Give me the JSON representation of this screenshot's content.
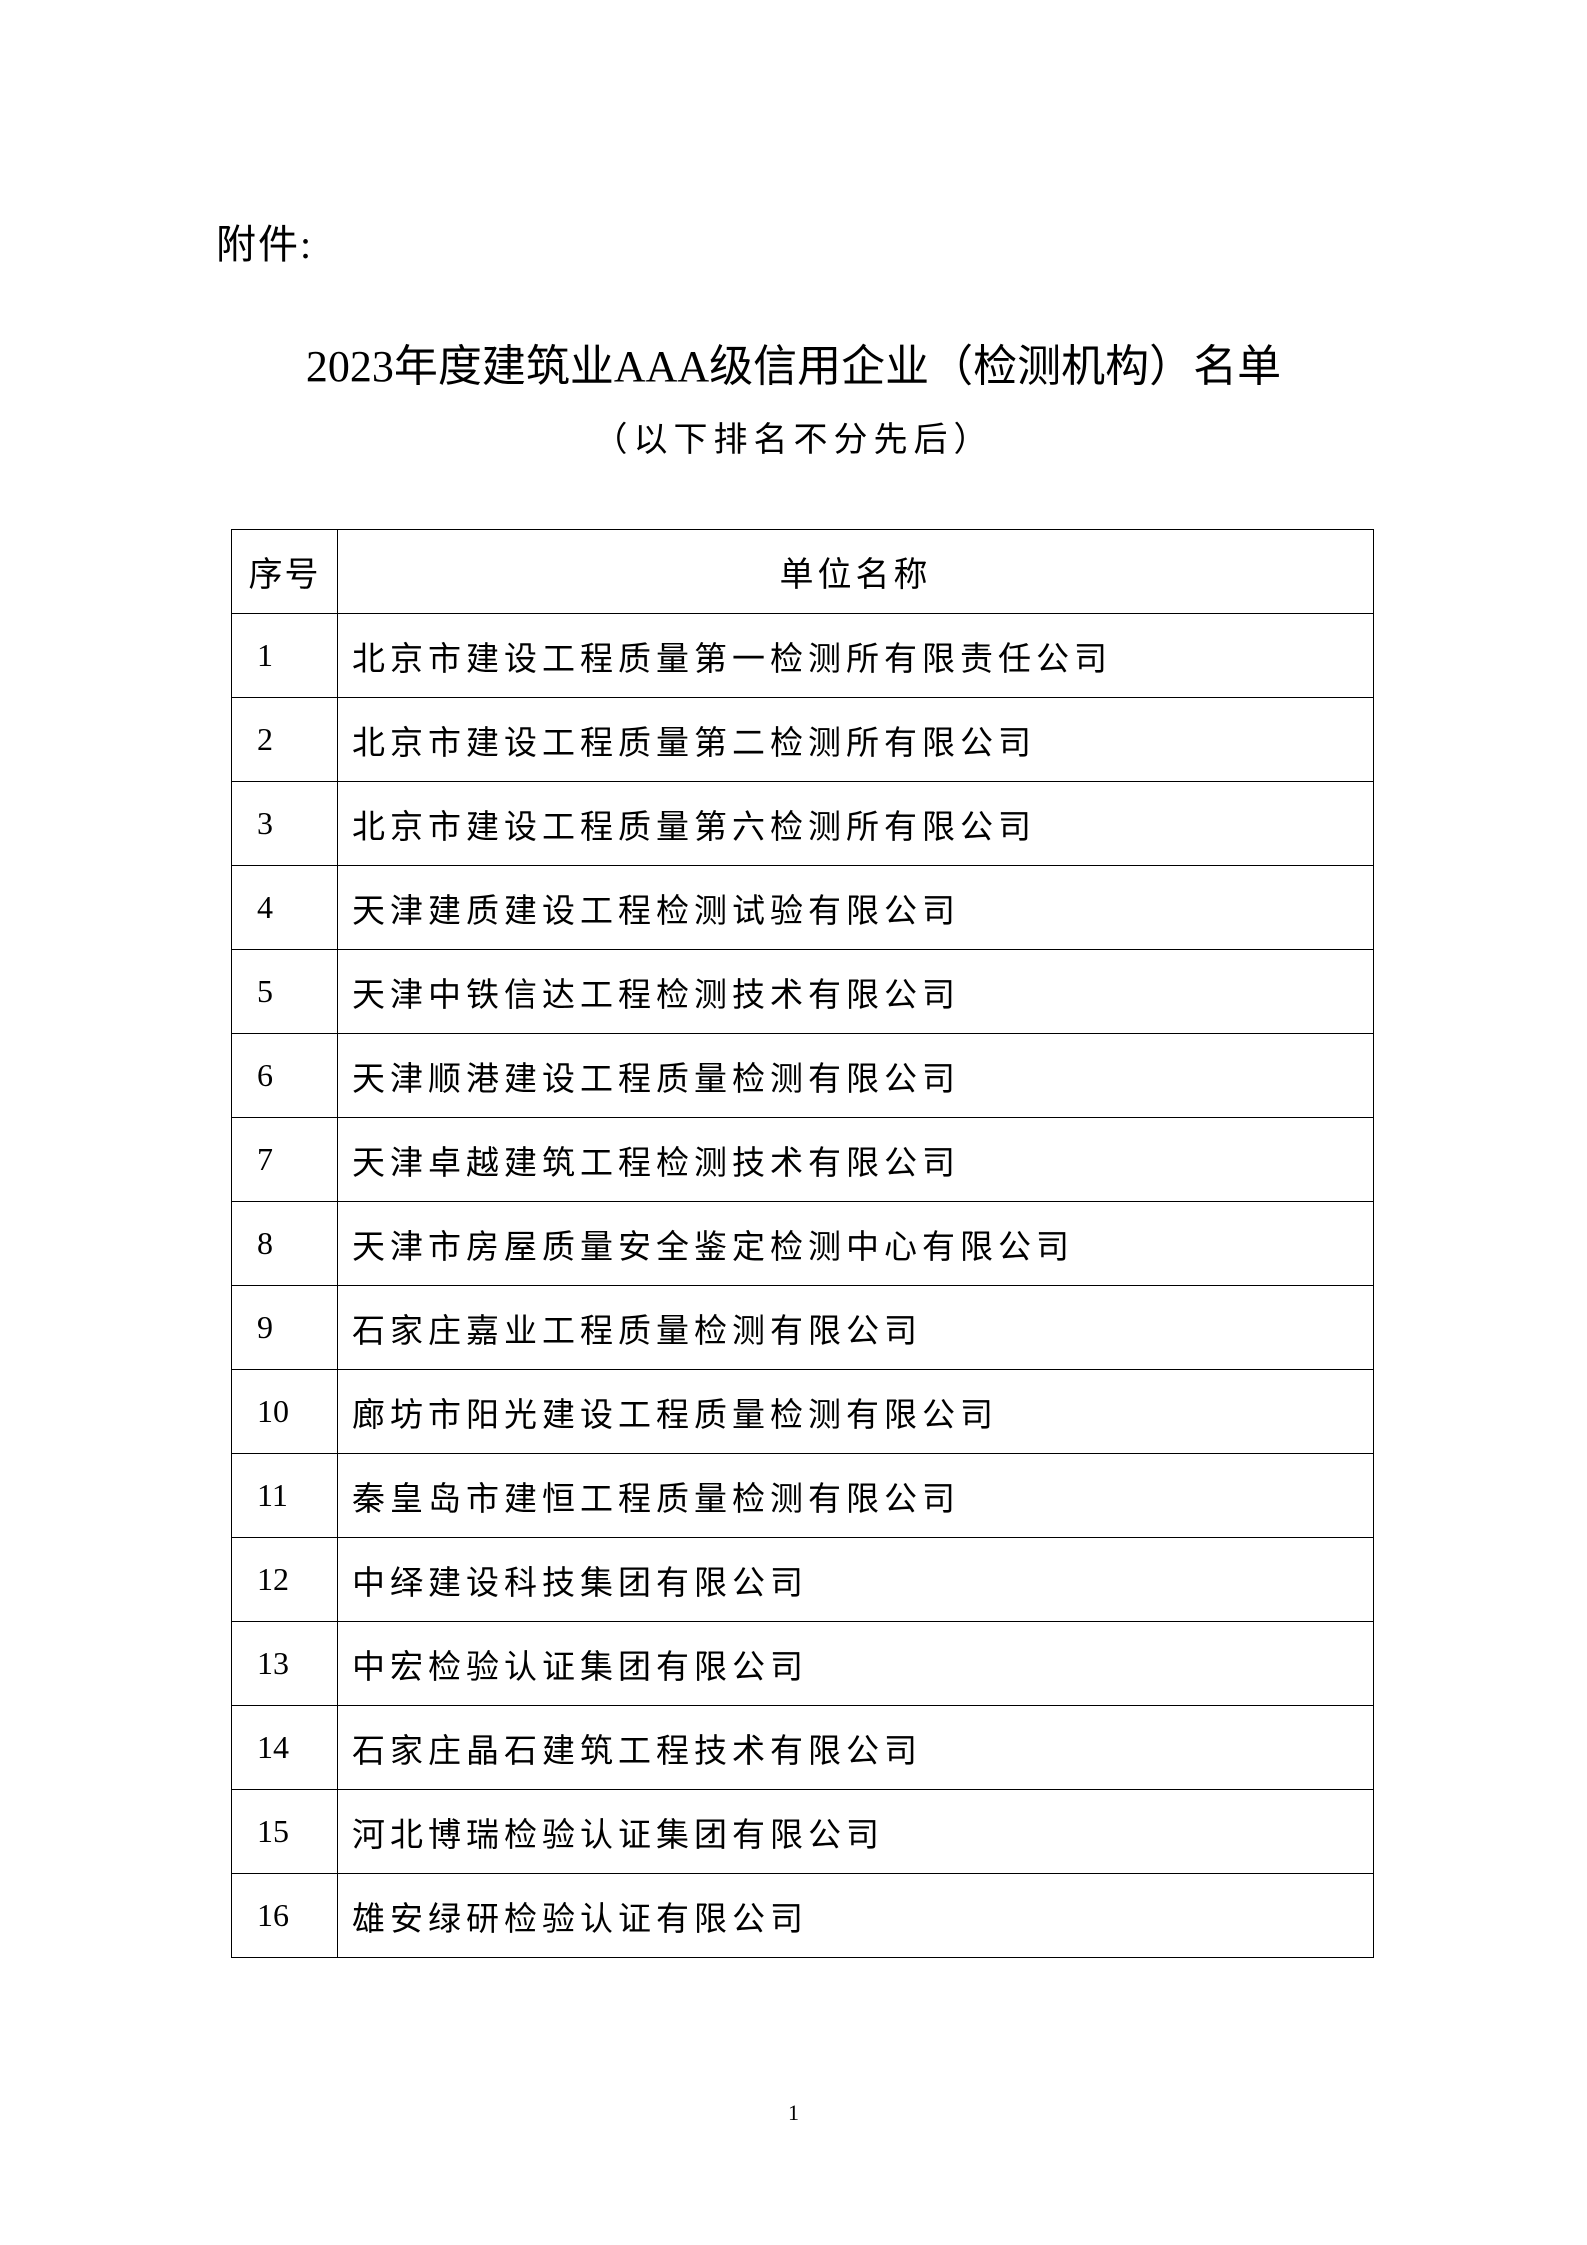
{
  "attachment_label": "附件:",
  "title": "2023年度建筑业AAA级信用企业（检测机构）名单",
  "subtitle": "（以下排名不分先后）",
  "table": {
    "headers": [
      "序号",
      "单位名称"
    ],
    "rows": [
      [
        "1",
        "北京市建设工程质量第一检测所有限责任公司"
      ],
      [
        "2",
        "北京市建设工程质量第二检测所有限公司"
      ],
      [
        "3",
        "北京市建设工程质量第六检测所有限公司"
      ],
      [
        "4",
        "天津建质建设工程检测试验有限公司"
      ],
      [
        "5",
        "天津中铁信达工程检测技术有限公司"
      ],
      [
        "6",
        "天津顺港建设工程质量检测有限公司"
      ],
      [
        "7",
        "天津卓越建筑工程检测技术有限公司"
      ],
      [
        "8",
        "天津市房屋质量安全鉴定检测中心有限公司"
      ],
      [
        "9",
        "石家庄嘉业工程质量检测有限公司"
      ],
      [
        "10",
        "廊坊市阳光建设工程质量检测有限公司"
      ],
      [
        "11",
        "秦皇岛市建恒工程质量检测有限公司"
      ],
      [
        "12",
        "中绎建设科技集团有限公司"
      ],
      [
        "13",
        "中宏检验认证集团有限公司"
      ],
      [
        "14",
        "石家庄晶石建筑工程技术有限公司"
      ],
      [
        "15",
        "河北博瑞检验认证集团有限公司"
      ],
      [
        "16",
        "雄安绿研检验认证有限公司"
      ]
    ]
  },
  "page_number": "1"
}
